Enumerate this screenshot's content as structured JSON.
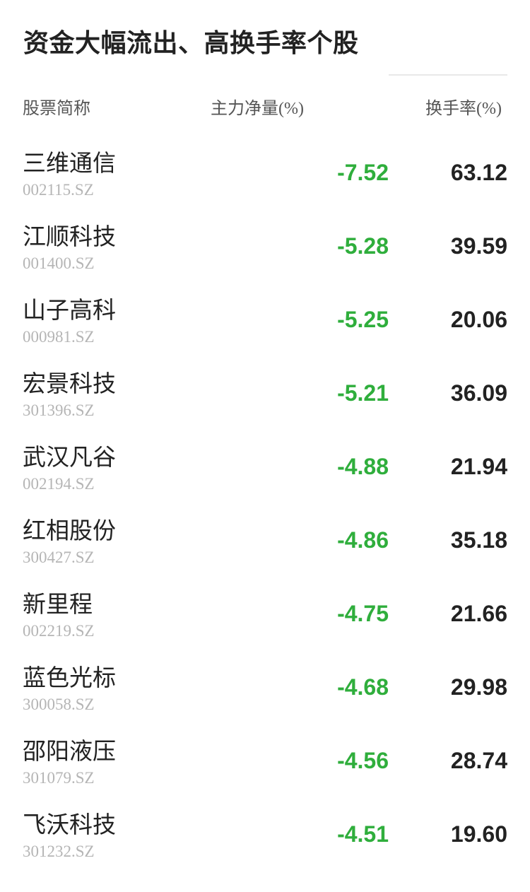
{
  "title": "资金大幅流出、高换手率个股",
  "headers": {
    "name": "股票简称",
    "net_flow": "主力净量(%)",
    "turnover": "换手率(%)"
  },
  "colors": {
    "negative": "#2fae3c",
    "text": "#222222",
    "code": "#b5b5b5"
  },
  "rows": [
    {
      "name": "三维通信",
      "code": "002115.SZ",
      "net_flow": "-7.52",
      "turnover": "63.12"
    },
    {
      "name": "江顺科技",
      "code": "001400.SZ",
      "net_flow": "-5.28",
      "turnover": "39.59"
    },
    {
      "name": "山子高科",
      "code": "000981.SZ",
      "net_flow": "-5.25",
      "turnover": "20.06"
    },
    {
      "name": "宏景科技",
      "code": "301396.SZ",
      "net_flow": "-5.21",
      "turnover": "36.09"
    },
    {
      "name": "武汉凡谷",
      "code": "002194.SZ",
      "net_flow": "-4.88",
      "turnover": "21.94"
    },
    {
      "name": "红相股份",
      "code": "300427.SZ",
      "net_flow": "-4.86",
      "turnover": "35.18"
    },
    {
      "name": "新里程",
      "code": "002219.SZ",
      "net_flow": "-4.75",
      "turnover": "21.66"
    },
    {
      "name": "蓝色光标",
      "code": "300058.SZ",
      "net_flow": "-4.68",
      "turnover": "29.98"
    },
    {
      "name": "邵阳液压",
      "code": "301079.SZ",
      "net_flow": "-4.56",
      "turnover": "28.74"
    },
    {
      "name": "飞沃科技",
      "code": "301232.SZ",
      "net_flow": "-4.51",
      "turnover": "19.60"
    }
  ]
}
